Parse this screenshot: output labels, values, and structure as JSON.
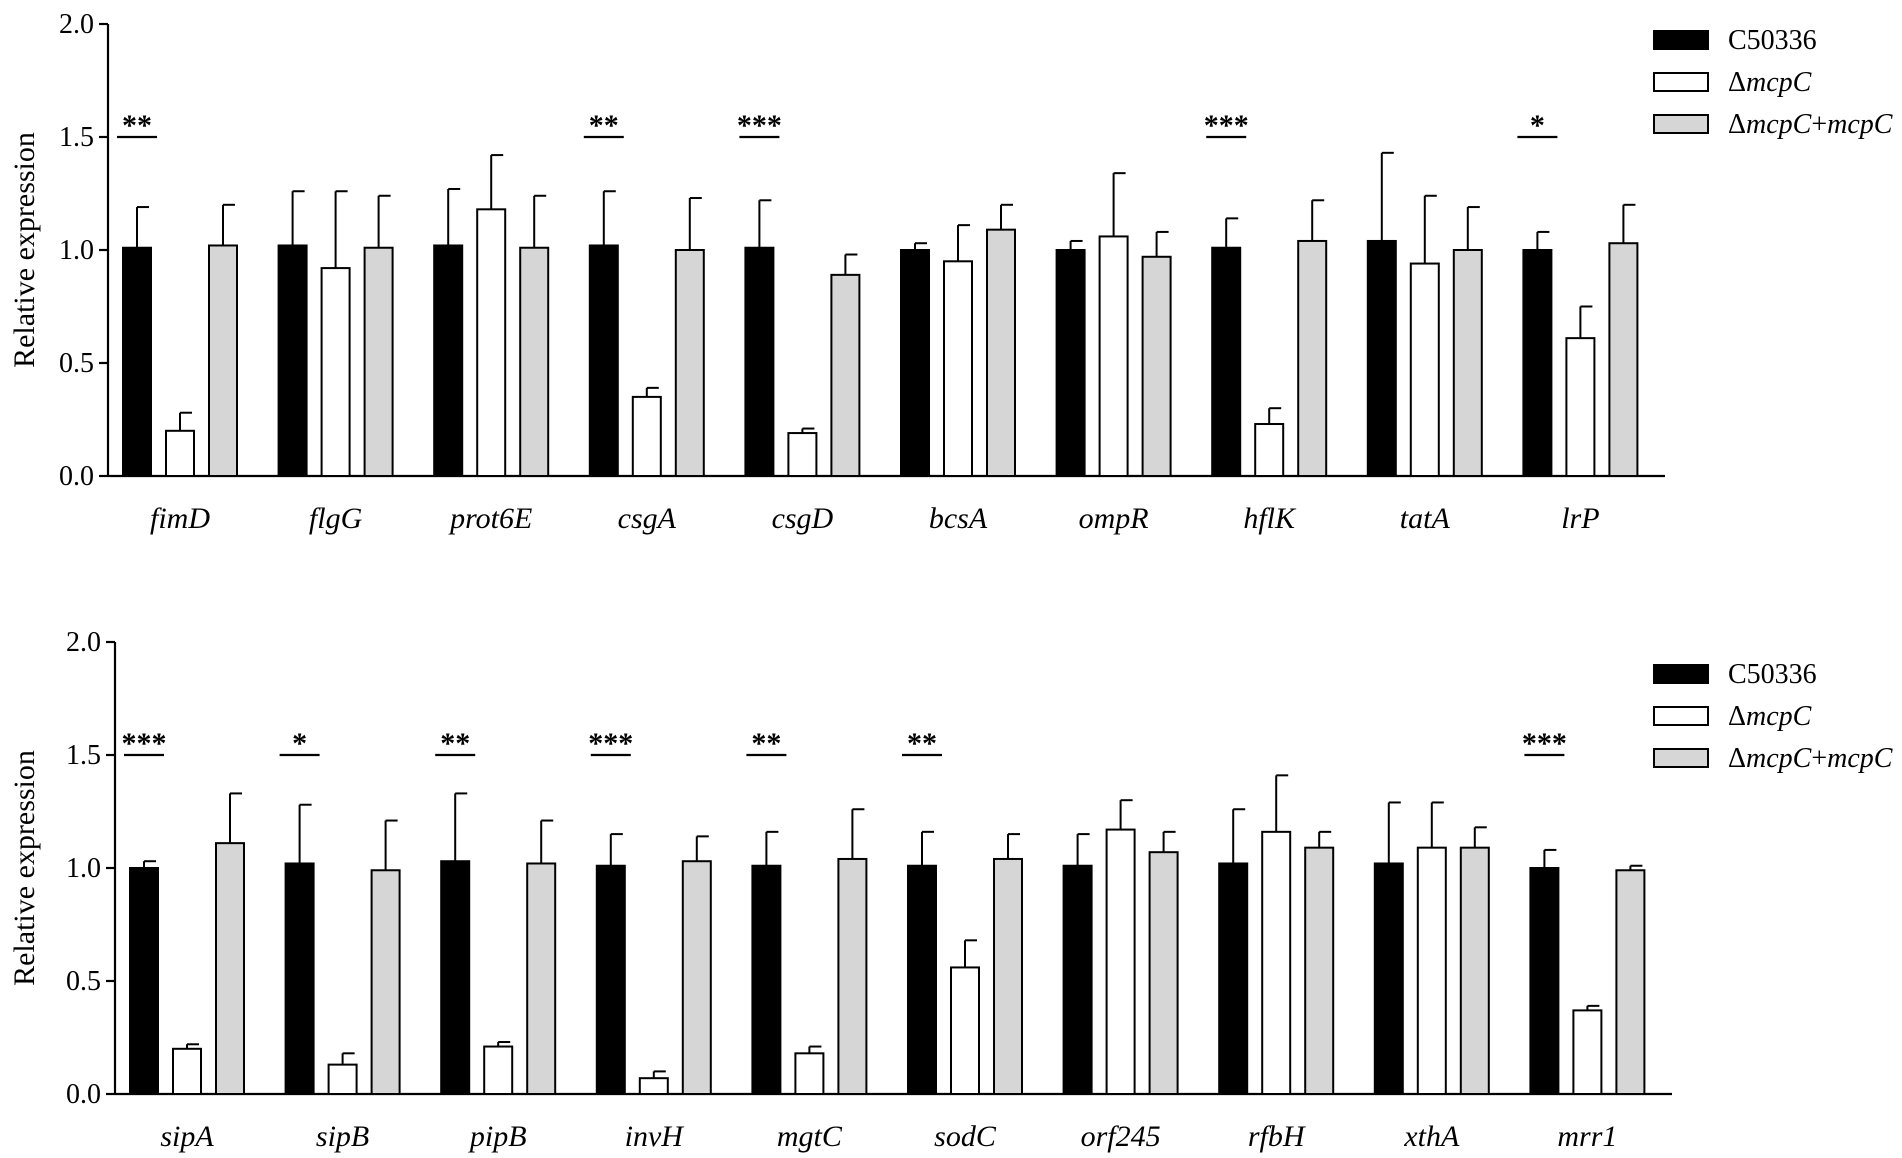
{
  "chart_data": [
    {
      "type": "bar",
      "ylabel": "Relative expression",
      "ylim": [
        0,
        2.0
      ],
      "yticks": [
        "0.0",
        "0.5",
        "1.0",
        "1.5",
        "2.0"
      ],
      "categories": [
        "fimD",
        "flgG",
        "prot6E",
        "csgA",
        "csgD",
        "bcsA",
        "ompR",
        "hflK",
        "tatA",
        "lrP"
      ],
      "series": [
        {
          "name": "C50336",
          "color": "#000000",
          "values": [
            1.01,
            1.02,
            1.02,
            1.02,
            1.01,
            1.0,
            1.0,
            1.01,
            1.04,
            1.0
          ],
          "errors": [
            0.18,
            0.24,
            0.25,
            0.24,
            0.21,
            0.03,
            0.04,
            0.13,
            0.39,
            0.08
          ]
        },
        {
          "name": "ΔmcpC",
          "color": "#ffffff",
          "values": [
            0.2,
            0.92,
            1.18,
            0.35,
            0.19,
            0.95,
            1.06,
            0.23,
            0.94,
            0.61
          ],
          "errors": [
            0.08,
            0.34,
            0.24,
            0.04,
            0.02,
            0.16,
            0.28,
            0.07,
            0.3,
            0.14
          ]
        },
        {
          "name": "ΔmcpC+mcpC",
          "color": "#d6d6d6",
          "values": [
            1.02,
            1.01,
            1.01,
            1.0,
            0.89,
            1.09,
            0.97,
            1.04,
            1.0,
            1.03
          ],
          "errors": [
            0.18,
            0.23,
            0.23,
            0.23,
            0.09,
            0.11,
            0.11,
            0.18,
            0.19,
            0.17
          ]
        }
      ],
      "significance": [
        "**",
        "",
        "",
        "**",
        "***",
        "",
        "",
        "***",
        "",
        "*"
      ],
      "legend": {
        "position": "top-right",
        "entries": [
          {
            "parts": [
              {
                "text": "C50336",
                "italic": false
              }
            ]
          },
          {
            "parts": [
              {
                "text": "Δ",
                "italic": false
              },
              {
                "text": "mcpC",
                "italic": true
              }
            ]
          },
          {
            "parts": [
              {
                "text": "Δ",
                "italic": false
              },
              {
                "text": "mcpC",
                "italic": true
              },
              {
                "text": "+",
                "italic": false
              },
              {
                "text": "mcpC",
                "italic": true
              }
            ]
          }
        ]
      },
      "grid": false
    },
    {
      "type": "bar",
      "ylabel": "Relative expression",
      "ylim": [
        0,
        2.0
      ],
      "yticks": [
        "0.0",
        "0.5",
        "1.0",
        "1.5",
        "2.0"
      ],
      "categories": [
        "sipA",
        "sipB",
        "pipB",
        "invH",
        "mgtC",
        "sodC",
        "orf245",
        "rfbH",
        "xthA",
        "mrr1"
      ],
      "series": [
        {
          "name": "C50336",
          "color": "#000000",
          "values": [
            1.0,
            1.02,
            1.03,
            1.01,
            1.01,
            1.01,
            1.01,
            1.02,
            1.02,
            1.0
          ],
          "errors": [
            0.03,
            0.26,
            0.3,
            0.14,
            0.15,
            0.15,
            0.14,
            0.24,
            0.27,
            0.08
          ]
        },
        {
          "name": "ΔmcpC",
          "color": "#ffffff",
          "values": [
            0.2,
            0.13,
            0.21,
            0.07,
            0.18,
            0.56,
            1.17,
            1.16,
            1.09,
            0.37
          ],
          "errors": [
            0.02,
            0.05,
            0.02,
            0.03,
            0.03,
            0.12,
            0.13,
            0.25,
            0.2,
            0.02
          ]
        },
        {
          "name": "ΔmcpC+mcpC",
          "color": "#d6d6d6",
          "values": [
            1.11,
            0.99,
            1.02,
            1.03,
            1.04,
            1.04,
            1.07,
            1.09,
            1.09,
            0.99
          ],
          "errors": [
            0.22,
            0.22,
            0.19,
            0.11,
            0.22,
            0.11,
            0.09,
            0.07,
            0.09,
            0.02
          ]
        }
      ],
      "significance": [
        "***",
        "*",
        "**",
        "***",
        "**",
        "**",
        "",
        "",
        "",
        "***"
      ],
      "legend": {
        "position": "top-right",
        "entries": [
          {
            "parts": [
              {
                "text": "C50336",
                "italic": false
              }
            ]
          },
          {
            "parts": [
              {
                "text": "Δ",
                "italic": false
              },
              {
                "text": "mcpC",
                "italic": true
              }
            ]
          },
          {
            "parts": [
              {
                "text": "Δ",
                "italic": false
              },
              {
                "text": "mcpC",
                "italic": true
              },
              {
                "text": "+",
                "italic": false
              },
              {
                "text": "mcpC",
                "italic": true
              }
            ]
          }
        ]
      },
      "grid": false
    }
  ]
}
